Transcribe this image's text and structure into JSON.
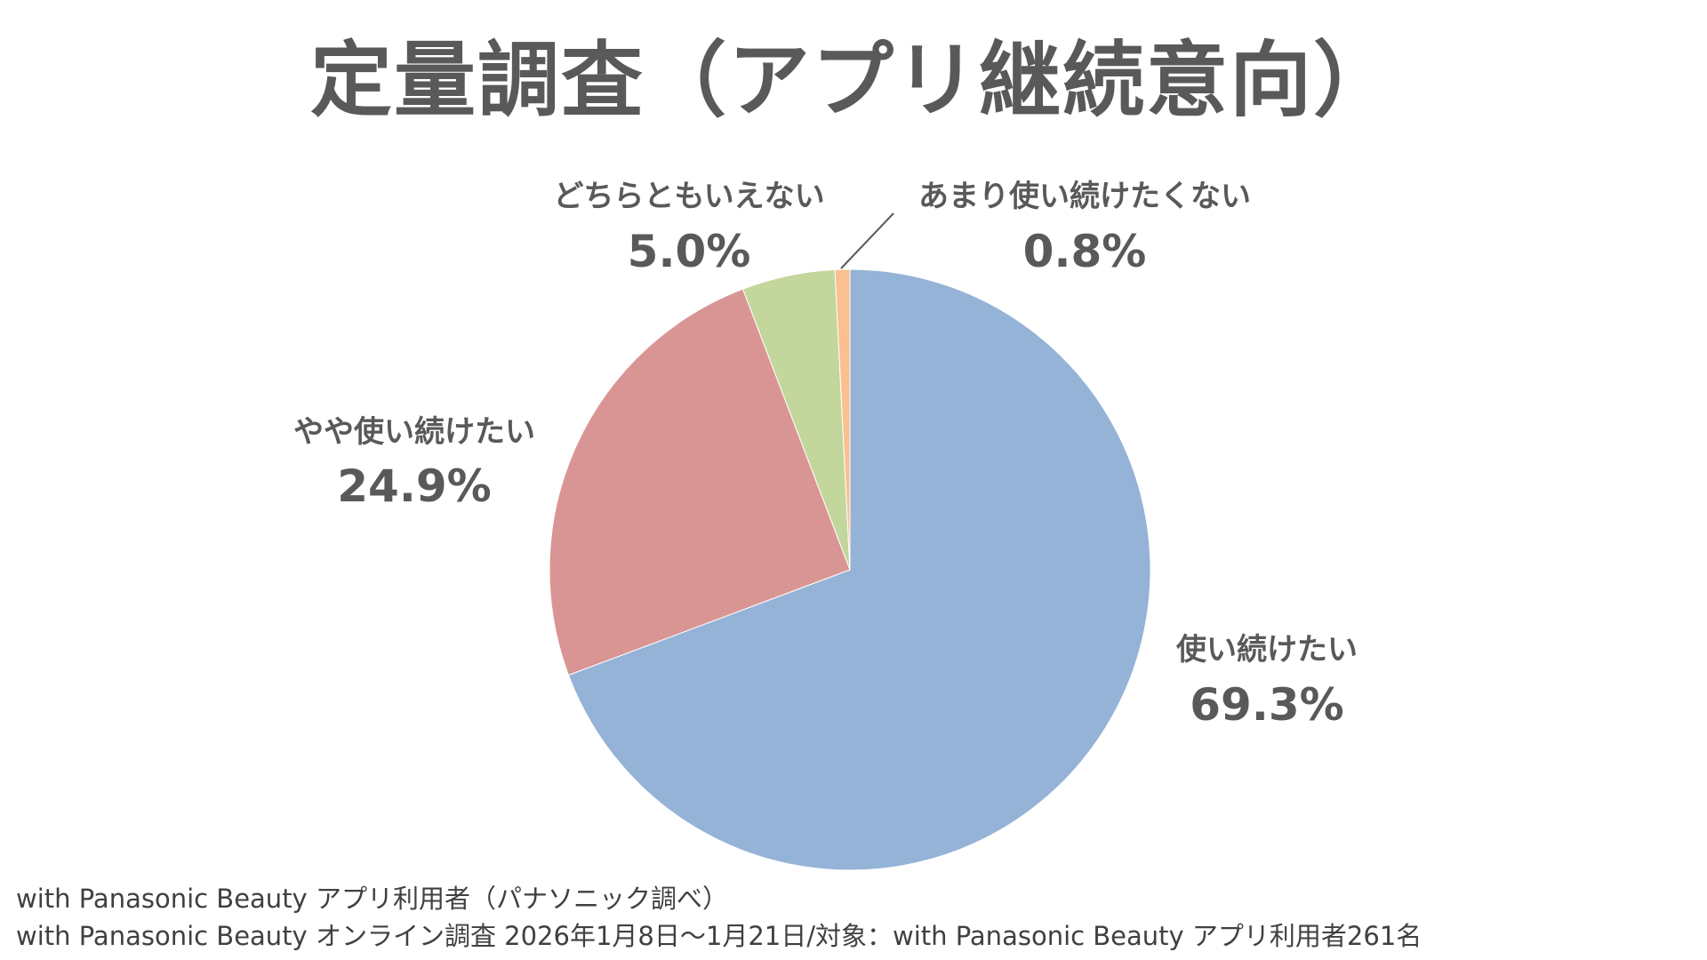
{
  "chart_data": {
    "type": "pie",
    "title": "定量調査（アプリ継続意向）",
    "start": "top",
    "direction": "clockwise",
    "unit": "%",
    "slices": [
      {
        "label": "使い続けたい",
        "value": 69.3,
        "display": "69.3%",
        "color": "#95B3D7"
      },
      {
        "label": "やや使い続けたい",
        "value": 24.9,
        "display": "24.9%",
        "color": "#D99594"
      },
      {
        "label": "どちらともいえない",
        "value": 5.0,
        "display": "5.0%",
        "color": "#C3D69B"
      },
      {
        "label": "あまり使い続けたくない",
        "value": 0.8,
        "display": "0.8%",
        "color": "#FAC090"
      }
    ]
  },
  "footnotes": {
    "line1": "with Panasonic Beauty アプリ利用者（パナソニック調べ）",
    "line2": "with Panasonic Beauty オンライン調査 2026年1月8日〜1月21日/対象：with Panasonic Beauty アプリ利用者261名"
  }
}
